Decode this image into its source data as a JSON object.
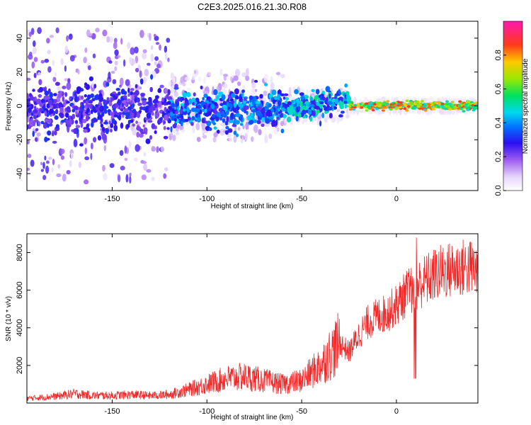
{
  "title": "C2E3.2025.016.21.30.R08",
  "chart_data": [
    {
      "type": "heatmap",
      "xlabel": "Height of straight line (km)",
      "ylabel": "Frequency (Hz)",
      "xlim": [
        -195,
        43
      ],
      "ylim": [
        -50,
        50
      ],
      "xticks": [
        -150,
        -100,
        -50,
        0
      ],
      "yticks": [
        -40,
        -20,
        0,
        20,
        40
      ],
      "colorbar": {
        "label": "Normalized spectral amplitude",
        "range": [
          0.0,
          1.0
        ],
        "ticks": [
          0.0,
          0.2,
          0.4,
          0.6,
          0.8
        ],
        "colors": [
          "#ffffff",
          "#c9a8f5",
          "#6a1fe0",
          "#1a16ff",
          "#00c8ff",
          "#00e06a",
          "#9ee600",
          "#ffb400",
          "#ff2a2a",
          "#ff1aa8"
        ]
      },
      "description_bands": [
        {
          "x_range": [
            -195,
            -120
          ],
          "freq_center": 0,
          "freq_spread": 50,
          "amplitude": 0.15
        },
        {
          "x_range": [
            -120,
            -60
          ],
          "freq_center": -2,
          "freq_spread": 12,
          "amplitude": 0.35
        },
        {
          "x_range": [
            -60,
            -25
          ],
          "freq_center": 2,
          "freq_spread": 6,
          "amplitude": 0.5
        },
        {
          "x_range": [
            -25,
            43
          ],
          "freq_center": 0,
          "freq_spread": 1.5,
          "amplitude": 0.9
        }
      ]
    },
    {
      "type": "line",
      "xlabel": "Height of straight line (km)",
      "ylabel": "SNR (10 * v/v)",
      "xlim": [
        -195,
        43
      ],
      "ylim": [
        0,
        9000
      ],
      "xticks": [
        -150,
        -100,
        -50,
        0
      ],
      "yticks": [
        2000,
        4000,
        6000,
        8000
      ],
      "line_color": "#ee2a2a",
      "series": [
        {
          "x": [
            -195,
            -180,
            -170,
            -160,
            -150,
            -140,
            -130,
            -120,
            -110,
            -100,
            -90,
            -80,
            -70,
            -60,
            -50,
            -45,
            -40,
            -35,
            -30,
            -25,
            -20,
            -15,
            -10,
            -5,
            0,
            5,
            10,
            15,
            20,
            25,
            30,
            35,
            40,
            43
          ],
          "y": [
            250,
            350,
            500,
            400,
            400,
            450,
            400,
            450,
            700,
            1000,
            1300,
            1400,
            1200,
            1000,
            1200,
            1600,
            2000,
            2600,
            3200,
            2700,
            3600,
            4300,
            4600,
            4800,
            5200,
            5800,
            6200,
            6500,
            6800,
            7000,
            7100,
            7200,
            7200,
            7000
          ]
        }
      ]
    }
  ]
}
